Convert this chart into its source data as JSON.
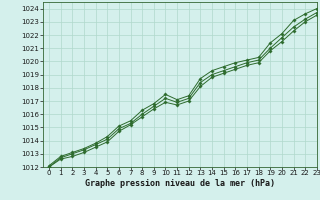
{
  "title": "Graphe pression niveau de la mer (hPa)",
  "bg_color": "#d4f0ec",
  "grid_color": "#b0d8cc",
  "line_color": "#2d6b2d",
  "marker_color": "#2d6b2d",
  "xlim": [
    -0.5,
    23
  ],
  "ylim": [
    1012,
    1024.5
  ],
  "xticks": [
    0,
    1,
    2,
    3,
    4,
    5,
    6,
    7,
    8,
    9,
    10,
    11,
    12,
    13,
    14,
    15,
    16,
    17,
    18,
    19,
    20,
    21,
    22,
    23
  ],
  "yticks": [
    1012,
    1013,
    1014,
    1015,
    1016,
    1017,
    1018,
    1019,
    1020,
    1021,
    1022,
    1023,
    1024
  ],
  "line1_x": [
    0,
    1,
    2,
    3,
    4,
    5,
    6,
    7,
    8,
    9,
    10,
    11,
    12,
    13,
    14,
    15,
    16,
    17,
    18,
    19,
    20,
    21,
    22,
    23
  ],
  "line1_y": [
    1012.1,
    1012.8,
    1013.1,
    1013.4,
    1013.8,
    1014.3,
    1015.1,
    1015.5,
    1016.3,
    1016.8,
    1017.5,
    1017.1,
    1017.4,
    1018.7,
    1019.3,
    1019.6,
    1019.9,
    1020.1,
    1020.3,
    1021.4,
    1022.1,
    1023.1,
    1023.6,
    1024.0
  ],
  "line2_x": [
    0,
    1,
    2,
    3,
    4,
    5,
    6,
    7,
    8,
    9,
    10,
    11,
    12,
    13,
    14,
    15,
    16,
    17,
    18,
    19,
    20,
    21,
    22,
    23
  ],
  "line2_y": [
    1012.0,
    1012.7,
    1013.0,
    1013.3,
    1013.7,
    1014.1,
    1014.9,
    1015.3,
    1016.0,
    1016.6,
    1017.2,
    1016.9,
    1017.2,
    1018.4,
    1019.0,
    1019.3,
    1019.6,
    1019.9,
    1020.1,
    1021.0,
    1021.8,
    1022.6,
    1023.2,
    1023.7
  ],
  "line3_x": [
    0,
    1,
    2,
    3,
    4,
    5,
    6,
    7,
    8,
    9,
    10,
    11,
    12,
    13,
    14,
    15,
    16,
    17,
    18,
    19,
    20,
    21,
    22,
    23
  ],
  "line3_y": [
    1012.0,
    1012.6,
    1012.8,
    1013.1,
    1013.5,
    1013.9,
    1014.7,
    1015.2,
    1015.8,
    1016.4,
    1016.9,
    1016.7,
    1017.0,
    1018.1,
    1018.8,
    1019.1,
    1019.4,
    1019.7,
    1019.9,
    1020.8,
    1021.5,
    1022.3,
    1023.0,
    1023.5
  ],
  "tick_fontsize": 5.0,
  "title_fontsize": 6.0
}
